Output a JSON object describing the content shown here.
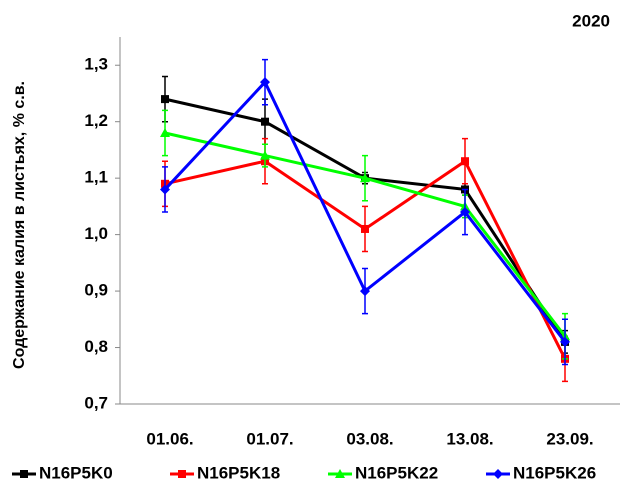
{
  "chart_data": {
    "type": "line",
    "title": "2020",
    "y_label": "Содержание калия в листьях, % с.в.",
    "categories": [
      "01.06.",
      "01.07.",
      "03.08.",
      "13.08.",
      "23.09."
    ],
    "ylim": [
      0.7,
      1.35
    ],
    "yticks": [
      {
        "value": 0.7,
        "label": "0,7"
      },
      {
        "value": 0.8,
        "label": "0,8"
      },
      {
        "value": 0.9,
        "label": "0,9"
      },
      {
        "value": 1.0,
        "label": "1,0"
      },
      {
        "value": 1.1,
        "label": "1,1"
      },
      {
        "value": 1.2,
        "label": "1,2"
      },
      {
        "value": 1.3,
        "label": "1,3"
      }
    ],
    "series": [
      {
        "name": "N16P5K0",
        "color": "#000000",
        "marker": "square",
        "values": [
          1.24,
          1.2,
          1.1,
          1.08,
          0.81
        ],
        "errors": [
          0.04,
          0.04,
          0.01,
          0.01,
          0.02
        ]
      },
      {
        "name": "N16P5K18",
        "color": "#ff0000",
        "marker": "square",
        "values": [
          1.09,
          1.13,
          1.01,
          1.13,
          0.78
        ],
        "errors": [
          0.04,
          0.04,
          0.04,
          0.04,
          0.04
        ]
      },
      {
        "name": "N16P5K22",
        "color": "#00ff00",
        "marker": "triangle",
        "values": [
          1.18,
          1.14,
          1.1,
          1.05,
          0.82
        ],
        "errors": [
          0.04,
          0.02,
          0.04,
          0.02,
          0.04
        ]
      },
      {
        "name": "N16P5K26",
        "color": "#0000ff",
        "marker": "diamond",
        "values": [
          1.08,
          1.27,
          0.9,
          1.04,
          0.81
        ],
        "errors": [
          0.04,
          0.04,
          0.04,
          0.04,
          0.04
        ]
      }
    ]
  }
}
